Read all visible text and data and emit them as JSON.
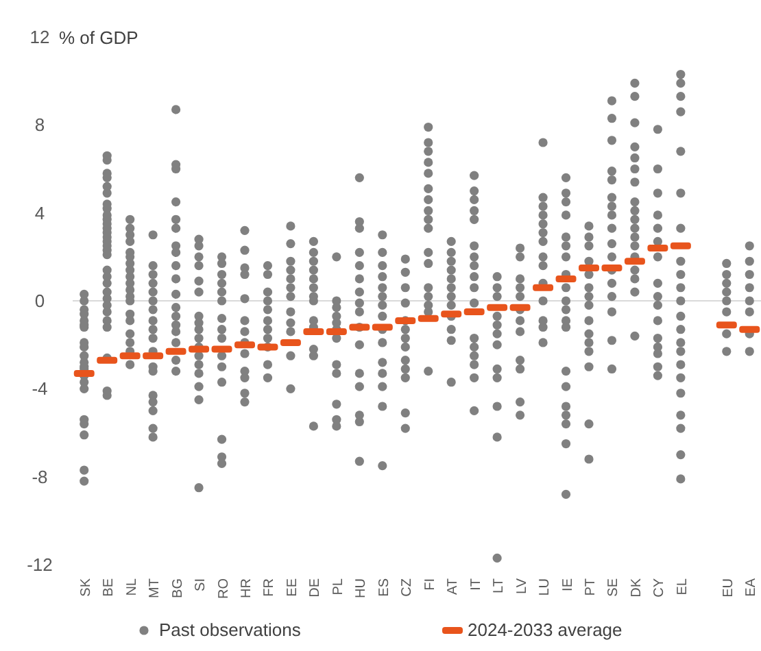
{
  "chart_data": {
    "type": "scatter",
    "ylabel": "% of GDP",
    "categories": [
      "SK",
      "BE",
      "NL",
      "MT",
      "BG",
      "SI",
      "RO",
      "HR",
      "FR",
      "EE",
      "DE",
      "PL",
      "HU",
      "ES",
      "CZ",
      "FI",
      "AT",
      "IT",
      "LT",
      "LV",
      "LU",
      "IE",
      "PT",
      "SE",
      "DK",
      "CY",
      "EL",
      null,
      "EU",
      "EA"
    ],
    "ylim": [
      -12,
      12
    ],
    "yticks": [
      -12,
      -8,
      -4,
      0,
      4,
      8,
      12
    ],
    "legend": "bottom",
    "series": [
      {
        "name": "Past observations",
        "marker": "circle",
        "color": "#808080",
        "x": [
          "SK",
          "SK",
          "SK",
          "SK",
          "SK",
          "SK",
          "SK",
          "SK",
          "SK",
          "SK",
          "SK",
          "SK",
          "SK",
          "SK",
          "SK",
          "SK",
          "SK",
          "SK",
          "SK",
          "SK",
          "SK",
          "BE",
          "BE",
          "BE",
          "BE",
          "BE",
          "BE",
          "BE",
          "BE",
          "BE",
          "BE",
          "BE",
          "BE",
          "BE",
          "BE",
          "BE",
          "BE",
          "BE",
          "BE",
          "BE",
          "BE",
          "BE",
          "BE",
          "BE",
          "BE",
          "BE",
          "BE",
          "BE",
          "BE",
          "BE",
          "BE",
          "NL",
          "NL",
          "NL",
          "NL",
          "NL",
          "NL",
          "NL",
          "NL",
          "NL",
          "NL",
          "NL",
          "NL",
          "NL",
          "NL",
          "NL",
          "NL",
          "NL",
          "NL",
          "NL",
          "MT",
          "MT",
          "MT",
          "MT",
          "MT",
          "MT",
          "MT",
          "MT",
          "MT",
          "MT",
          "MT",
          "MT",
          "MT",
          "MT",
          "MT",
          "MT",
          "MT",
          "MT",
          "BG",
          "BG",
          "BG",
          "BG",
          "BG",
          "BG",
          "BG",
          "BG",
          "BG",
          "BG",
          "BG",
          "BG",
          "BG",
          "BG",
          "BG",
          "BG",
          "BG",
          "BG",
          "SI",
          "SI",
          "SI",
          "SI",
          "SI",
          "SI",
          "SI",
          "SI",
          "SI",
          "SI",
          "SI",
          "SI",
          "SI",
          "SI",
          "SI",
          "SI",
          "SI",
          "RO",
          "RO",
          "RO",
          "RO",
          "RO",
          "RO",
          "RO",
          "RO",
          "RO",
          "RO",
          "RO",
          "RO",
          "RO",
          "RO",
          "RO",
          "HR",
          "HR",
          "HR",
          "HR",
          "HR",
          "HR",
          "HR",
          "HR",
          "HR",
          "HR",
          "HR",
          "HR",
          "HR",
          "FR",
          "FR",
          "FR",
          "FR",
          "FR",
          "FR",
          "FR",
          "FR",
          "FR",
          "FR",
          "FR",
          "EE",
          "EE",
          "EE",
          "EE",
          "EE",
          "EE",
          "EE",
          "EE",
          "EE",
          "EE",
          "EE",
          "EE",
          "DE",
          "DE",
          "DE",
          "DE",
          "DE",
          "DE",
          "DE",
          "DE",
          "DE",
          "DE",
          "DE",
          "DE",
          "DE",
          "PL",
          "PL",
          "PL",
          "PL",
          "PL",
          "PL",
          "PL",
          "PL",
          "PL",
          "PL",
          "PL",
          "PL",
          "HU",
          "HU",
          "HU",
          "HU",
          "HU",
          "HU",
          "HU",
          "HU",
          "HU",
          "HU",
          "HU",
          "HU",
          "HU",
          "HU",
          "HU",
          "HU",
          "ES",
          "ES",
          "ES",
          "ES",
          "ES",
          "ES",
          "ES",
          "ES",
          "ES",
          "ES",
          "ES",
          "ES",
          "ES",
          "ES",
          "ES",
          "CZ",
          "CZ",
          "CZ",
          "CZ",
          "CZ",
          "CZ",
          "CZ",
          "CZ",
          "CZ",
          "CZ",
          "CZ",
          "CZ",
          "CZ",
          "FI",
          "FI",
          "FI",
          "FI",
          "FI",
          "FI",
          "FI",
          "FI",
          "FI",
          "FI",
          "FI",
          "FI",
          "FI",
          "FI",
          "FI",
          "FI",
          "FI",
          "AT",
          "AT",
          "AT",
          "AT",
          "AT",
          "AT",
          "AT",
          "AT",
          "AT",
          "AT",
          "AT",
          "AT",
          "IT",
          "IT",
          "IT",
          "IT",
          "IT",
          "IT",
          "IT",
          "IT",
          "IT",
          "IT",
          "IT",
          "IT",
          "IT",
          "IT",
          "IT",
          "IT",
          "IT",
          "LT",
          "LT",
          "LT",
          "LT",
          "LT",
          "LT",
          "LT",
          "LT",
          "LT",
          "LT",
          "LT",
          "LT",
          "LV",
          "LV",
          "LV",
          "LV",
          "LV",
          "LV",
          "LV",
          "LV",
          "LV",
          "LV",
          "LV",
          "LV",
          "LU",
          "LU",
          "LU",
          "LU",
          "LU",
          "LU",
          "LU",
          "LU",
          "LU",
          "LU",
          "LU",
          "LU",
          "LU",
          "LU",
          "IE",
          "IE",
          "IE",
          "IE",
          "IE",
          "IE",
          "IE",
          "IE",
          "IE",
          "IE",
          "IE",
          "IE",
          "IE",
          "IE",
          "IE",
          "IE",
          "IE",
          "IE",
          "IE",
          "IE",
          "PT",
          "PT",
          "PT",
          "PT",
          "PT",
          "PT",
          "PT",
          "PT",
          "PT",
          "PT",
          "PT",
          "PT",
          "PT",
          "PT",
          "PT",
          "SE",
          "SE",
          "SE",
          "SE",
          "SE",
          "SE",
          "SE",
          "SE",
          "SE",
          "SE",
          "SE",
          "SE",
          "SE",
          "SE",
          "SE",
          "SE",
          "SE",
          "DK",
          "DK",
          "DK",
          "DK",
          "DK",
          "DK",
          "DK",
          "DK",
          "DK",
          "DK",
          "DK",
          "DK",
          "DK",
          "DK",
          "DK",
          "DK",
          "DK",
          "DK",
          "CY",
          "CY",
          "CY",
          "CY",
          "CY",
          "CY",
          "CY",
          "CY",
          "CY",
          "CY",
          "CY",
          "CY",
          "CY",
          "CY",
          "CY",
          "CY",
          "EL",
          "EL",
          "EL",
          "EL",
          "EL",
          "EL",
          "EL",
          "EL",
          "EL",
          "EL",
          "EL",
          "EL",
          "EL",
          "EL",
          "EL",
          "EL",
          "EL",
          "EL",
          "EL",
          "EL",
          "EL",
          "EL",
          "EU",
          "EU",
          "EU",
          "EU",
          "EU",
          "EU",
          "EU",
          "EU",
          "EA",
          "EA",
          "EA",
          "EA",
          "EA",
          "EA",
          "EA",
          "EA"
        ],
        "values": [
          0.3,
          0,
          -0.4,
          -0.6,
          -0.9,
          -1.1,
          -1.2,
          -1.9,
          -2.1,
          -2.5,
          -2.8,
          -3,
          -3.1,
          -3.4,
          -3.7,
          -4,
          -5.4,
          -5.6,
          -6.1,
          -7.7,
          -8.2,
          6.6,
          6.4,
          5.8,
          5.6,
          5.2,
          4.9,
          4.4,
          4.2,
          3.9,
          3.7,
          3.5,
          3.3,
          3.1,
          2.9,
          2.7,
          2.5,
          2.3,
          2.1,
          1.4,
          1.1,
          0.8,
          0.4,
          0.1,
          -0.2,
          -0.5,
          -0.9,
          -1.2,
          -2.6,
          -4.1,
          -4.3,
          3.7,
          3.3,
          3,
          2.7,
          2.2,
          2,
          1.7,
          1.4,
          1.1,
          0.8,
          0.5,
          0.2,
          0,
          -0.6,
          -0.9,
          -1.5,
          -1.9,
          -2.3,
          -2.9,
          3,
          1.6,
          1.2,
          0.8,
          0.4,
          0,
          -0.4,
          -0.9,
          -1.3,
          -1.7,
          -2.3,
          -3,
          -3.2,
          -4.3,
          -4.6,
          -5,
          -5.8,
          -6.2,
          8.7,
          6.2,
          6,
          4.5,
          3.7,
          3.3,
          2.5,
          2.2,
          1.6,
          1,
          0.3,
          -0.3,
          -0.7,
          -1.1,
          -1.4,
          -1.9,
          -2.7,
          -3.2,
          2.8,
          2.5,
          2,
          1.6,
          0.9,
          0.4,
          -0.7,
          -1,
          -1.3,
          -1.7,
          -2.1,
          -2.5,
          -2.9,
          -3.3,
          -3.9,
          -4.5,
          -8.5,
          2,
          1.7,
          1.2,
          0.8,
          0.4,
          0,
          -0.8,
          -1.3,
          -1.7,
          -2.5,
          -3,
          -3.7,
          -6.3,
          -7.1,
          -7.4,
          3.2,
          2.3,
          1.5,
          1.2,
          0.1,
          -0.9,
          -1.4,
          -1.9,
          -2.4,
          -3.2,
          -3.5,
          -4.2,
          -4.6,
          1.6,
          1.2,
          0.4,
          0,
          -0.4,
          -0.9,
          -1.3,
          -1.7,
          -2.1,
          -2.9,
          -3.5,
          3.4,
          2.6,
          1.8,
          1.4,
          1,
          0.6,
          0.2,
          -0.5,
          -1,
          -1.4,
          -2.5,
          -4,
          2.7,
          2.2,
          1.8,
          1.4,
          1,
          0.6,
          0.2,
          0,
          -0.9,
          -1.2,
          -2.2,
          -2.5,
          -5.7,
          2,
          0,
          -0.3,
          -0.7,
          -1,
          -1.3,
          -1.7,
          -2.9,
          -3.3,
          -4.7,
          -5.4,
          -5.7,
          5.6,
          3.6,
          3.3,
          2.2,
          1.6,
          1,
          0.4,
          -0.1,
          -0.5,
          -1.2,
          -2,
          -3.3,
          -3.9,
          -5.2,
          -5.5,
          -7.3,
          3,
          2.2,
          1.6,
          1.1,
          0.6,
          0.2,
          -0.2,
          -0.7,
          -1.3,
          -1.9,
          -2.8,
          -3.3,
          -3.9,
          -4.8,
          -7.5,
          1.9,
          1.3,
          0.6,
          -0.1,
          -0.9,
          -1.3,
          -1.7,
          -2.1,
          -2.7,
          -3.1,
          -3.5,
          -5.1,
          -5.8,
          7.9,
          7.2,
          6.8,
          6.3,
          5.8,
          5.1,
          4.6,
          4.1,
          3.7,
          3.3,
          2.2,
          1.7,
          0.6,
          0.2,
          -0.2,
          -0.5,
          -3.2,
          2.7,
          2.2,
          1.8,
          1.4,
          1,
          0.6,
          0.2,
          -0.2,
          -0.7,
          -1.3,
          -1.8,
          -3.7,
          5.7,
          5,
          4.6,
          4.1,
          3.7,
          2.5,
          2,
          1.6,
          1.1,
          0.6,
          -0.1,
          -1.7,
          -2.1,
          -2.5,
          -2.9,
          -3.5,
          -5,
          1.1,
          0.6,
          0.2,
          -0.7,
          -1.1,
          -1.5,
          -2,
          -3.1,
          -3.5,
          -4.8,
          -6.2,
          -11.7,
          2.4,
          2,
          1,
          0.6,
          0.2,
          -0.4,
          -0.9,
          -1.4,
          -2.7,
          -3.1,
          -4.6,
          -5.2,
          7.2,
          4.7,
          4.3,
          3.9,
          3.5,
          3.1,
          2.7,
          2,
          1.6,
          0.8,
          0,
          -0.9,
          -1.2,
          -1.9,
          5.6,
          4.9,
          4.5,
          3.9,
          2.9,
          2.5,
          2,
          1.2,
          0.6,
          0,
          -0.4,
          -0.9,
          -1.2,
          -3.2,
          -3.9,
          -4.8,
          -5.2,
          -5.6,
          -6.5,
          -8.8,
          3.4,
          2.9,
          2.5,
          1.8,
          1.2,
          0.6,
          0.2,
          -0.2,
          -0.9,
          -1.5,
          -1.9,
          -2.3,
          -3,
          -5.6,
          -7.2,
          9.1,
          8.3,
          7.3,
          5.9,
          5.5,
          4.7,
          4.3,
          3.9,
          3.3,
          2.6,
          2,
          1.4,
          0.8,
          0.2,
          -0.5,
          -1.8,
          -3.1,
          9.9,
          9.3,
          8.1,
          7,
          6.5,
          6,
          5.4,
          4.5,
          4.1,
          3.7,
          3.3,
          2.9,
          2.5,
          2,
          1.4,
          1,
          0.4,
          -1.6,
          7.8,
          6,
          4.9,
          3.9,
          3.3,
          2.7,
          2,
          0.8,
          0.2,
          -0.2,
          -0.9,
          -1.7,
          -2.1,
          -2.4,
          -3,
          -3.4,
          10.3,
          9.9,
          9.3,
          8.6,
          6.8,
          4.9,
          3.3,
          1.8,
          1.2,
          0.6,
          0,
          -0.7,
          -1.3,
          -1.9,
          -2.3,
          -2.9,
          -3.5,
          -4.2,
          -5.2,
          -5.8,
          -7,
          -8.1,
          1.7,
          1.2,
          0.8,
          0.4,
          0,
          -0.5,
          -1.5,
          -2.3,
          2.5,
          1.8,
          1.2,
          0.6,
          0,
          -0.5,
          -1.5,
          -2.3
        ]
      },
      {
        "name": "2024-2033 average",
        "marker": "square",
        "color": "#e8541c",
        "values": [
          -3.3,
          -2.7,
          -2.5,
          -2.5,
          -2.3,
          -2.2,
          -2.2,
          -2,
          -2.1,
          -1.9,
          -1.4,
          -1.4,
          -1.2,
          -1.2,
          -0.9,
          -0.8,
          -0.6,
          -0.5,
          -0.3,
          -0.3,
          0.6,
          1,
          1.5,
          1.5,
          1.8,
          2.4,
          2.5,
          null,
          -1.1,
          -1.3
        ]
      }
    ]
  }
}
